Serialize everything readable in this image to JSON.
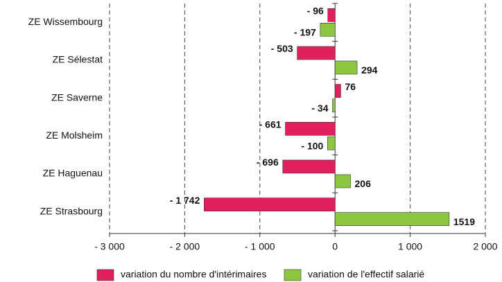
{
  "chart_data": {
    "type": "bar",
    "orientation": "horizontal",
    "categories": [
      "ZE Wissembourg",
      "ZE Sélestat",
      "ZE Saverne",
      "ZE Molsheim",
      "ZE Haguenau",
      "ZE Strasbourg"
    ],
    "series": [
      {
        "name": "variation du nombre d'intérimaires",
        "color": "#e2215c",
        "values": [
          -96,
          -503,
          76,
          -661,
          -696,
          -1742
        ],
        "value_labels": [
          "- 96",
          "- 503",
          "76",
          "- 661",
          "- 696",
          "- 1 742"
        ]
      },
      {
        "name": "variation de l'effectif salarié",
        "color": "#8dc63f",
        "values": [
          -197,
          294,
          -34,
          -100,
          206,
          1519
        ],
        "value_labels": [
          "- 197",
          "294",
          "- 34",
          "- 100",
          "206",
          "1519"
        ]
      }
    ],
    "xlim": [
      -3000,
      2000
    ],
    "xticks": [
      {
        "value": -3000,
        "label": "- 3 000"
      },
      {
        "value": -2000,
        "label": "- 2 000"
      },
      {
        "value": -1000,
        "label": "- 1 000"
      },
      0,
      {
        "value": 1000,
        "label": "1 000"
      },
      {
        "value": 2000,
        "label": "2 000"
      }
    ],
    "grid": true,
    "legend": "bottom"
  }
}
